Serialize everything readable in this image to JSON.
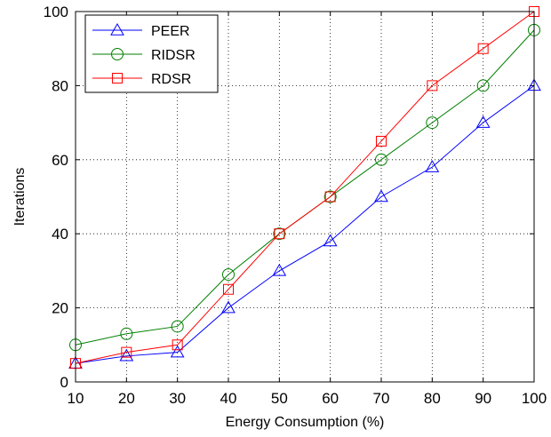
{
  "chart_data": {
    "type": "line",
    "xlabel": "Energy Consumption (%)",
    "ylabel": "Iterations",
    "x": [
      10,
      20,
      30,
      40,
      50,
      60,
      70,
      80,
      90,
      100
    ],
    "xlim": [
      10,
      100
    ],
    "ylim": [
      0,
      100
    ],
    "xticks": [
      10,
      20,
      30,
      40,
      50,
      60,
      70,
      80,
      90,
      100
    ],
    "yticks": [
      0,
      20,
      40,
      60,
      80,
      100
    ],
    "grid": true,
    "legend": "top-left",
    "series": [
      {
        "name": "PEER",
        "color": "#0000ff",
        "marker": "triangle",
        "values": [
          5,
          7,
          8,
          20,
          30,
          38,
          50,
          58,
          70,
          80
        ]
      },
      {
        "name": "RIDSR",
        "color": "#008000",
        "marker": "circle",
        "values": [
          10,
          13,
          15,
          29,
          40,
          50,
          60,
          70,
          80,
          95
        ]
      },
      {
        "name": "RDSR",
        "color": "#ff0000",
        "marker": "square",
        "values": [
          5,
          8,
          10,
          25,
          40,
          50,
          65,
          80,
          90,
          100
        ]
      }
    ]
  }
}
